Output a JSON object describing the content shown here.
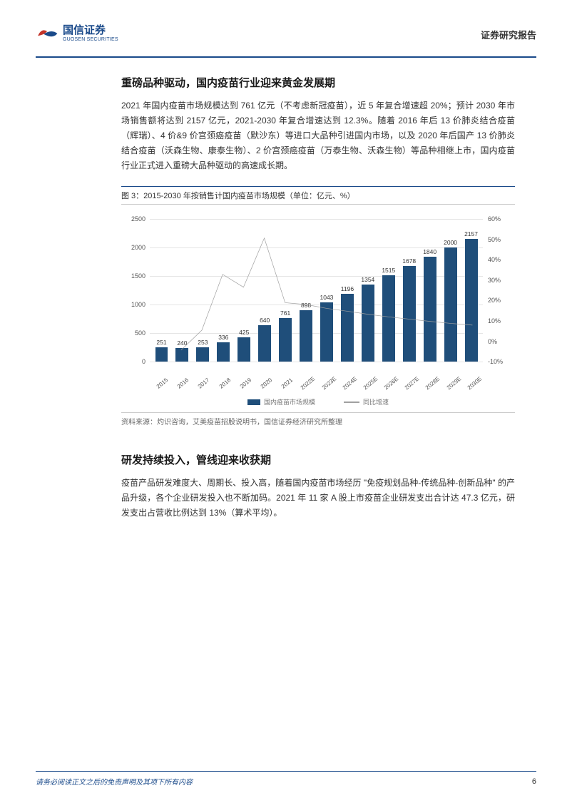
{
  "header": {
    "company_cn": "国信证券",
    "company_en": "GUOSEN SECURITIES",
    "report_type": "证券研究报告",
    "logo_colors": {
      "red": "#c4352a",
      "blue": "#1a4a8a"
    }
  },
  "section1": {
    "title": "重磅品种驱动，国内疫苗行业迎来黄金发展期",
    "body": "2021 年国内疫苗市场规模达到 761 亿元（不考虑新冠疫苗），近 5 年复合增速超 20%；预计 2030 年市场销售额将达到 2157 亿元，2021-2030 年复合增速达到 12.3%。随着 2016 年后 13 价肺炎结合疫苗（辉瑞）、4 价&9 价宫颈癌疫苗（默沙东）等进口大品种引进国内市场，以及 2020 年后国产 13 价肺炎结合疫苗（沃森生物、康泰生物）、2 价宫颈癌疫苗（万泰生物、沃森生物）等品种相继上市，国内疫苗行业正式进入重磅大品种驱动的高速成长期。"
  },
  "figure": {
    "caption": "图 3：2015-2030 年按销售计国内疫苗市场规模（单位：亿元、%）",
    "source": "资料来源：灼识咨询，艾美疫苗招股说明书，国信证券经济研究所整理",
    "legend_bar": "国内疫苗市场规模",
    "legend_line": "同比增速"
  },
  "chart": {
    "type": "bar+line",
    "bar_color": "#1f4e7a",
    "line_color": "#a0a0a0",
    "grid_color": "#e5e5e5",
    "y_left": {
      "min": 0,
      "max": 2500,
      "step": 500,
      "ticks": [
        "0",
        "500",
        "1000",
        "1500",
        "2000",
        "2500"
      ]
    },
    "y_right": {
      "min": -10,
      "max": 60,
      "step": 10,
      "ticks": [
        "-10%",
        "0%",
        "10%",
        "20%",
        "30%",
        "40%",
        "50%",
        "60%"
      ]
    },
    "categories": [
      "2015",
      "2016",
      "2017",
      "2018",
      "2019",
      "2020",
      "2021",
      "2022E",
      "2023E",
      "2024E",
      "2025E",
      "2026E",
      "2027E",
      "2028E",
      "2029E",
      "2030E"
    ],
    "bar_values": [
      251,
      240,
      253,
      336,
      425,
      640,
      761,
      898,
      1043,
      1196,
      1354,
      1515,
      1678,
      1840,
      2000,
      2157
    ],
    "line_values": [
      null,
      -4.4,
      5.4,
      32.8,
      26.5,
      50.6,
      18.9,
      18.0,
      16.1,
      14.7,
      13.2,
      11.9,
      10.8,
      9.7,
      8.7,
      7.9
    ]
  },
  "section2": {
    "title": "研发持续投入，管线迎来收获期",
    "body": "疫苗产品研发难度大、周期长、投入高，随着国内疫苗市场经历 \"免疫规划品种-传统品种-创新品种\" 的产品升级，各个企业研发投入也不断加码。2021 年 11 家 A 股上市疫苗企业研发支出合计达 47.3 亿元，研发支出占营收比例达到 13%（算术平均）。"
  },
  "footer": {
    "disclaimer": "请务必阅读正文之后的免责声明及其项下所有内容",
    "page_number": "6"
  }
}
